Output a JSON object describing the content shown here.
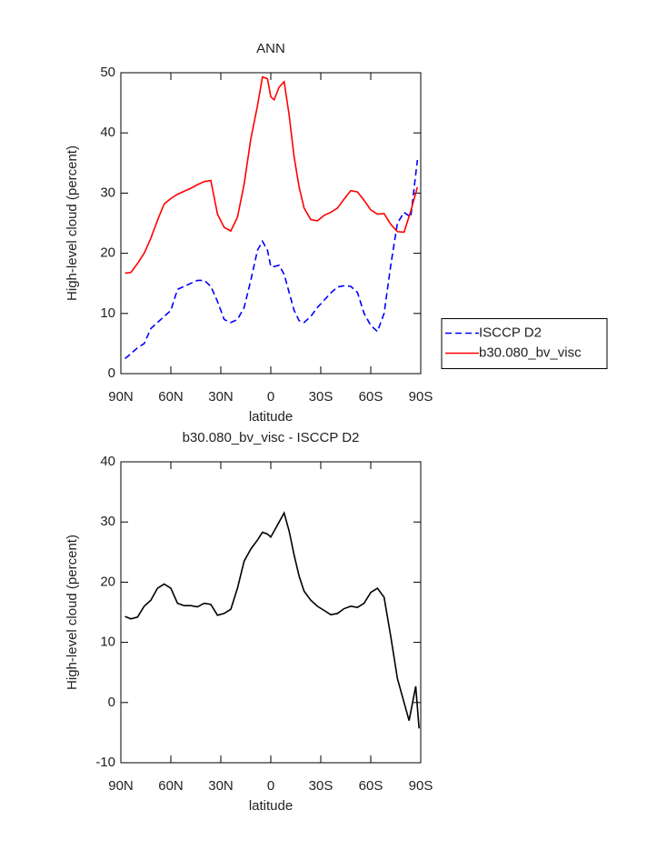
{
  "chart_data": [
    {
      "type": "line",
      "title": "ANN",
      "x_label": "latitude",
      "y_label": "High-level cloud (percent)",
      "x": [
        87.5,
        84,
        80,
        76,
        72,
        68,
        64,
        60,
        56,
        52,
        48,
        44,
        40,
        36,
        32,
        28,
        24,
        20,
        16,
        12,
        8,
        5,
        2,
        0,
        -2,
        -5,
        -8,
        -11,
        -14,
        -17,
        -20,
        -24,
        -28,
        -32,
        -36,
        -40,
        -44,
        -48,
        -52,
        -56,
        -60,
        -64,
        -68,
        -72,
        -76,
        -80,
        -84,
        -88
      ],
      "series": [
        {
          "name": "ISCCP D2",
          "color": "#0000ff",
          "dash": "dashed",
          "values": [
            2.5,
            3.3,
            4.3,
            5,
            7.5,
            8.5,
            9.5,
            10.5,
            14,
            14.5,
            15,
            15.5,
            15.5,
            14.5,
            12,
            9,
            8.5,
            9,
            11,
            15.5,
            20.5,
            22,
            20.5,
            17.8,
            17.8,
            18,
            16.5,
            13.5,
            10.5,
            8.8,
            8.5,
            9.5,
            11,
            12.2,
            13.4,
            14.4,
            14.6,
            14.5,
            13.5,
            10,
            8,
            7,
            10,
            18,
            25,
            26.8,
            26,
            35.5
          ]
        },
        {
          "name": "b30.080_bv_visc",
          "color": "#ff0000",
          "dash": "solid",
          "values": [
            16.7,
            16.8,
            18.3,
            20,
            22.5,
            25.5,
            28.2,
            29.1,
            29.8,
            30.3,
            30.8,
            31.4,
            31.9,
            32.1,
            26.5,
            24.3,
            23.7,
            26,
            31.5,
            39,
            44.5,
            49.3,
            49,
            46,
            45.5,
            47.6,
            48.5,
            43,
            36,
            31,
            27.5,
            25.6,
            25.4,
            26.3,
            26.8,
            27.5,
            29,
            30.4,
            30.2,
            28.8,
            27.2,
            26.5,
            26.6,
            24.8,
            23.6,
            23.5,
            27,
            31
          ]
        }
      ],
      "xlim": [
        90,
        -90
      ],
      "xticks": [
        {
          "value": 90,
          "label": "90N"
        },
        {
          "value": 60,
          "label": "60N"
        },
        {
          "value": 30,
          "label": "30N"
        },
        0,
        {
          "value": -30,
          "label": "30S"
        },
        {
          "value": -60,
          "label": "60S"
        },
        {
          "value": -90,
          "label": "90S"
        }
      ],
      "ylim": [
        0,
        50
      ],
      "yticks": [
        0,
        10,
        20,
        30,
        40,
        50
      ],
      "legend": "right"
    },
    {
      "type": "line",
      "title": "b30.080_bv_visc - ISCCP D2",
      "x_label": "latitude",
      "y_label": "High-level cloud (percent)",
      "x": [
        87.5,
        84,
        80,
        76,
        72,
        68,
        64,
        60,
        56,
        52,
        48,
        44,
        40,
        36,
        32,
        28,
        24,
        20,
        16,
        12,
        8,
        5,
        2,
        0,
        -2,
        -5,
        -8,
        -11,
        -14,
        -17,
        -20,
        -24,
        -28,
        -32,
        -36,
        -40,
        -44,
        -48,
        -52,
        -56,
        -60,
        -64,
        -68,
        -72,
        -76,
        -80,
        -83,
        -87,
        -89
      ],
      "series": [
        {
          "color": "#000000",
          "dash": "solid",
          "values": [
            14.3,
            13.9,
            14.2,
            16,
            17,
            19,
            19.7,
            19,
            16.5,
            16.1,
            16.1,
            15.9,
            16.5,
            16.3,
            14.5,
            14.8,
            15.5,
            19,
            23.5,
            25.5,
            27,
            28.3,
            28,
            27.5,
            28.5,
            30,
            31.5,
            28.5,
            24.5,
            21,
            18.5,
            17,
            16,
            15.3,
            14.6,
            14.8,
            15.6,
            16,
            15.8,
            16.5,
            18.3,
            19,
            17.5,
            11,
            4,
            0,
            -3,
            2.7,
            -4.3
          ]
        }
      ],
      "xlim": [
        90,
        -90
      ],
      "xticks": [
        {
          "value": 90,
          "label": "90N"
        },
        {
          "value": 60,
          "label": "60N"
        },
        {
          "value": 30,
          "label": "30N"
        },
        0,
        {
          "value": -30,
          "label": "30S"
        },
        {
          "value": -60,
          "label": "60S"
        },
        {
          "value": -90,
          "label": "90S"
        }
      ],
      "ylim": [
        -10,
        40
      ],
      "yticks": [
        -10,
        0,
        10,
        20,
        30,
        40
      ]
    }
  ]
}
